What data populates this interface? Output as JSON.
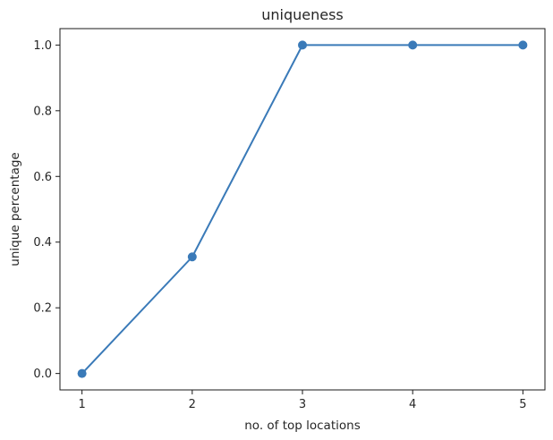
{
  "chart_data": {
    "type": "line",
    "title": "uniqueness",
    "xlabel": "no. of top locations",
    "ylabel": "unique percentage",
    "x": [
      1,
      2,
      3,
      4,
      5
    ],
    "series": [
      {
        "values": [
          0.0,
          0.355,
          1.0,
          1.0,
          1.0
        ],
        "color": "#3a7ab8"
      }
    ],
    "xlim": [
      0.8,
      5.2
    ],
    "ylim": [
      -0.05,
      1.05
    ],
    "xticks": [
      1,
      2,
      3,
      4,
      5
    ],
    "xtick_labels": [
      "1",
      "2",
      "3",
      "4",
      "5"
    ],
    "yticks": [
      0.0,
      0.2,
      0.4,
      0.6,
      0.8,
      1.0
    ],
    "ytick_labels": [
      "0.0",
      "0.2",
      "0.4",
      "0.6",
      "0.8",
      "1.0"
    ],
    "grid": false,
    "markers": "circle"
  }
}
